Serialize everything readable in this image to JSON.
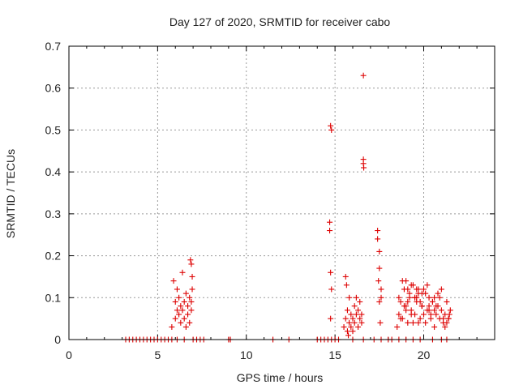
{
  "chart_data": {
    "type": "scatter",
    "title": "Day 127 of 2020, SRMTID for receiver cabo",
    "xlabel": "GPS time / hours",
    "ylabel": "SRMTID / TECUs",
    "xlim": [
      0,
      24
    ],
    "ylim": [
      0,
      0.7
    ],
    "xticks": [
      0,
      5,
      10,
      15,
      20
    ],
    "yticks": [
      0,
      0.1,
      0.2,
      0.3,
      0.4,
      0.5,
      0.6,
      0.7
    ],
    "xtick_labels": [
      "0",
      "5",
      "10",
      "15",
      "20"
    ],
    "ytick_labels": [
      "0",
      "0.1",
      "0.2",
      "0.3",
      "0.4",
      "0.5",
      "0.6",
      "0.7"
    ],
    "grid": true,
    "marker": "plus",
    "marker_color": "#dd0000",
    "series": [
      {
        "name": "SRMTID",
        "x": [
          3.2,
          3.4,
          3.6,
          3.8,
          4.0,
          4.2,
          4.4,
          4.6,
          4.8,
          5.0,
          5.2,
          5.4,
          5.6,
          5.8,
          6.1,
          6.5,
          7.0,
          7.2,
          7.4,
          7.6,
          9.0,
          9.1,
          11.5,
          12.4,
          14.0,
          14.2,
          14.4,
          14.6,
          14.8,
          15.0,
          15.2,
          16.0,
          16.6,
          17.2,
          17.6,
          18.0,
          18.2,
          18.6,
          19.0,
          19.4,
          19.8,
          20.5,
          21.0,
          21.3,
          5.8,
          5.9,
          6.0,
          6.0,
          6.1,
          6.1,
          6.2,
          6.2,
          6.3,
          6.3,
          6.4,
          6.4,
          6.5,
          6.5,
          6.6,
          6.6,
          6.7,
          6.7,
          6.8,
          6.8,
          6.9,
          6.9,
          6.95,
          6.95,
          6.9,
          6.85,
          14.7,
          14.7,
          14.75,
          14.75,
          14.8,
          14.8,
          14.75,
          15.5,
          15.6,
          15.6,
          15.7,
          15.7,
          15.8,
          15.8,
          15.9,
          15.9,
          16.0,
          16.0,
          16.1,
          16.1,
          16.2,
          16.2,
          16.3,
          16.3,
          16.4,
          16.4,
          16.5,
          16.5,
          15.65,
          15.75,
          16.6,
          16.6,
          16.6,
          16.62,
          17.4,
          17.4,
          17.5,
          17.5,
          17.5,
          17.6,
          17.6,
          17.45,
          17.55,
          18.5,
          18.6,
          18.7,
          18.8,
          18.9,
          19.0,
          19.1,
          19.2,
          19.3,
          19.4,
          19.5,
          19.6,
          19.7,
          19.8,
          19.9,
          20.0,
          20.1,
          20.2,
          20.3,
          20.4,
          20.5,
          20.6,
          20.7,
          20.8,
          20.9,
          21.0,
          21.1,
          21.2,
          21.3,
          21.4,
          21.5,
          18.6,
          18.8,
          19.0,
          19.2,
          19.4,
          19.6,
          19.8,
          20.0,
          20.2,
          20.4,
          20.6,
          20.8,
          21.0,
          21.2,
          21.4,
          18.7,
          18.9,
          19.1,
          19.3,
          19.5,
          19.7,
          19.9,
          20.1,
          20.3,
          20.5,
          20.7,
          20.9,
          21.1,
          21.3,
          21.45,
          19.0,
          19.3,
          19.5,
          19.7,
          19.9,
          20.3,
          20.6,
          19.1,
          19.6
        ],
        "y": [
          0,
          0,
          0,
          0,
          0,
          0,
          0,
          0,
          0,
          0,
          0,
          0,
          0,
          0,
          0,
          0,
          0,
          0,
          0,
          0,
          0,
          0,
          0,
          0,
          0,
          0,
          0,
          0,
          0,
          0,
          0,
          0,
          0,
          0,
          0,
          0,
          0,
          0,
          0,
          0,
          0,
          0,
          0,
          0,
          0.03,
          0.14,
          0.09,
          0.05,
          0.07,
          0.12,
          0.06,
          0.1,
          0.08,
          0.04,
          0.16,
          0.07,
          0.09,
          0.05,
          0.11,
          0.03,
          0.08,
          0.06,
          0.1,
          0.04,
          0.07,
          0.18,
          0.12,
          0.15,
          0.09,
          0.19,
          0.28,
          0.26,
          0.16,
          0.51,
          0.5,
          0.12,
          0.05,
          0.03,
          0.05,
          0.15,
          0.02,
          0.07,
          0.04,
          0.1,
          0.03,
          0.06,
          0.05,
          0.02,
          0.08,
          0.04,
          0.06,
          0.1,
          0.03,
          0.07,
          0.05,
          0.09,
          0.04,
          0.06,
          0.13,
          0.01,
          0.63,
          0.43,
          0.42,
          0.41,
          0.26,
          0.24,
          0.21,
          0.17,
          0.09,
          0.12,
          0.1,
          0.14,
          0.04,
          0.03,
          0.06,
          0.09,
          0.05,
          0.12,
          0.08,
          0.04,
          0.1,
          0.07,
          0.13,
          0.06,
          0.09,
          0.11,
          0.05,
          0.08,
          0.12,
          0.04,
          0.07,
          0.1,
          0.06,
          0.09,
          0.03,
          0.08,
          0.11,
          0.05,
          0.07,
          0.04,
          0.06,
          0.09,
          0.05,
          0.07,
          0.1,
          0.14,
          0.07,
          0.11,
          0.04,
          0.12,
          0.09,
          0.06,
          0.13,
          0.05,
          0.1,
          0.08,
          0.12,
          0.03,
          0.05,
          0.05,
          0.08,
          0.12,
          0.06,
          0.1,
          0.04,
          0.08,
          0.11,
          0.07,
          0.09,
          0.06,
          0.1,
          0.05,
          0.04,
          0.06,
          0.14,
          0.13,
          0.1,
          0.12,
          0.11,
          0.08,
          0.07,
          0.09,
          0.1
        ]
      }
    ]
  }
}
